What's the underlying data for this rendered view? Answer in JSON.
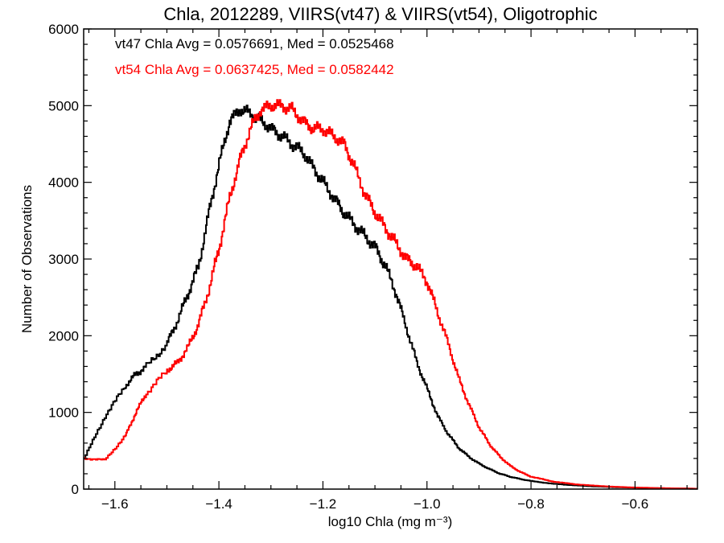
{
  "chart_data": {
    "type": "line",
    "title": "Chla, 2012289, VIIRS(vt47) & VIIRS(vt54), Oligotrophic",
    "xlabel": "log10 Chla (mg m⁻³)",
    "ylabel": "Number of Observations",
    "xlim": [
      -1.66,
      -0.48
    ],
    "ylim": [
      0,
      6000
    ],
    "x_ticks": [
      -1.6,
      -1.4,
      -1.2,
      -1.0,
      -0.8,
      -0.6
    ],
    "x_tick_labels": [
      "−1.6",
      "−1.4",
      "−1.2",
      "−1.0",
      "−0.8",
      "−0.6"
    ],
    "y_ticks": [
      0,
      1000,
      2000,
      3000,
      4000,
      5000,
      6000
    ],
    "y_tick_labels": [
      "0",
      "1000",
      "2000",
      "3000",
      "4000",
      "5000",
      "6000"
    ],
    "grid": false,
    "legend": "none",
    "annotations": [
      {
        "text": "vt47 Chla Avg = 0.0576691, Med = 0.0525468",
        "color": "#000000"
      },
      {
        "text": "vt54 Chla Avg = 0.0637425, Med = 0.0582442",
        "color": "#ff0000"
      }
    ],
    "series": [
      {
        "color": "#000000",
        "x": [
          -1.66,
          -1.62,
          -1.58,
          -1.56,
          -1.54,
          -1.5,
          -1.48,
          -1.46,
          -1.44,
          -1.42,
          -1.4,
          -1.38,
          -1.36,
          -1.34,
          -1.32,
          -1.3,
          -1.28,
          -1.26,
          -1.24,
          -1.22,
          -1.2,
          -1.18,
          -1.16,
          -1.14,
          -1.12,
          -1.1,
          -1.08,
          -1.06,
          -1.04,
          -1.02,
          -1.0,
          -0.98,
          -0.96,
          -0.94,
          -0.92,
          -0.9,
          -0.88,
          -0.86,
          -0.84,
          -0.82,
          -0.8,
          -0.76,
          -0.72,
          -0.68,
          -0.64,
          -0.6,
          -0.56,
          -0.52,
          -0.48
        ],
        "y": [
          400,
          950,
          1350,
          1500,
          1600,
          1900,
          2200,
          2550,
          2900,
          3600,
          4250,
          4800,
          4950,
          4900,
          4800,
          4700,
          4600,
          4500,
          4400,
          4200,
          4000,
          3800,
          3600,
          3450,
          3300,
          3150,
          2900,
          2550,
          2100,
          1650,
          1300,
          950,
          720,
          540,
          420,
          330,
          260,
          200,
          160,
          130,
          105,
          70,
          50,
          35,
          25,
          18,
          12,
          8,
          5
        ]
      },
      {
        "color": "#ff0000",
        "x": [
          -1.66,
          -1.62,
          -1.58,
          -1.56,
          -1.54,
          -1.5,
          -1.48,
          -1.46,
          -1.44,
          -1.42,
          -1.4,
          -1.38,
          -1.36,
          -1.34,
          -1.32,
          -1.3,
          -1.28,
          -1.26,
          -1.24,
          -1.22,
          -1.2,
          -1.18,
          -1.16,
          -1.14,
          -1.12,
          -1.1,
          -1.08,
          -1.06,
          -1.04,
          -1.02,
          -1.0,
          -0.98,
          -0.96,
          -0.94,
          -0.92,
          -0.9,
          -0.88,
          -0.86,
          -0.84,
          -0.82,
          -0.8,
          -0.76,
          -0.72,
          -0.68,
          -0.64,
          -0.6,
          -0.56,
          -0.52,
          -0.48
        ],
        "y": [
          400,
          380,
          700,
          1000,
          1250,
          1550,
          1650,
          1850,
          2150,
          2600,
          3150,
          3800,
          4300,
          4700,
          4950,
          5000,
          5000,
          4950,
          4800,
          4700,
          4700,
          4600,
          4500,
          4200,
          3850,
          3600,
          3400,
          3200,
          3000,
          2900,
          2700,
          2300,
          1900,
          1450,
          1100,
          800,
          580,
          420,
          300,
          220,
          160,
          100,
          65,
          45,
          30,
          20,
          14,
          9,
          5
        ]
      }
    ]
  }
}
